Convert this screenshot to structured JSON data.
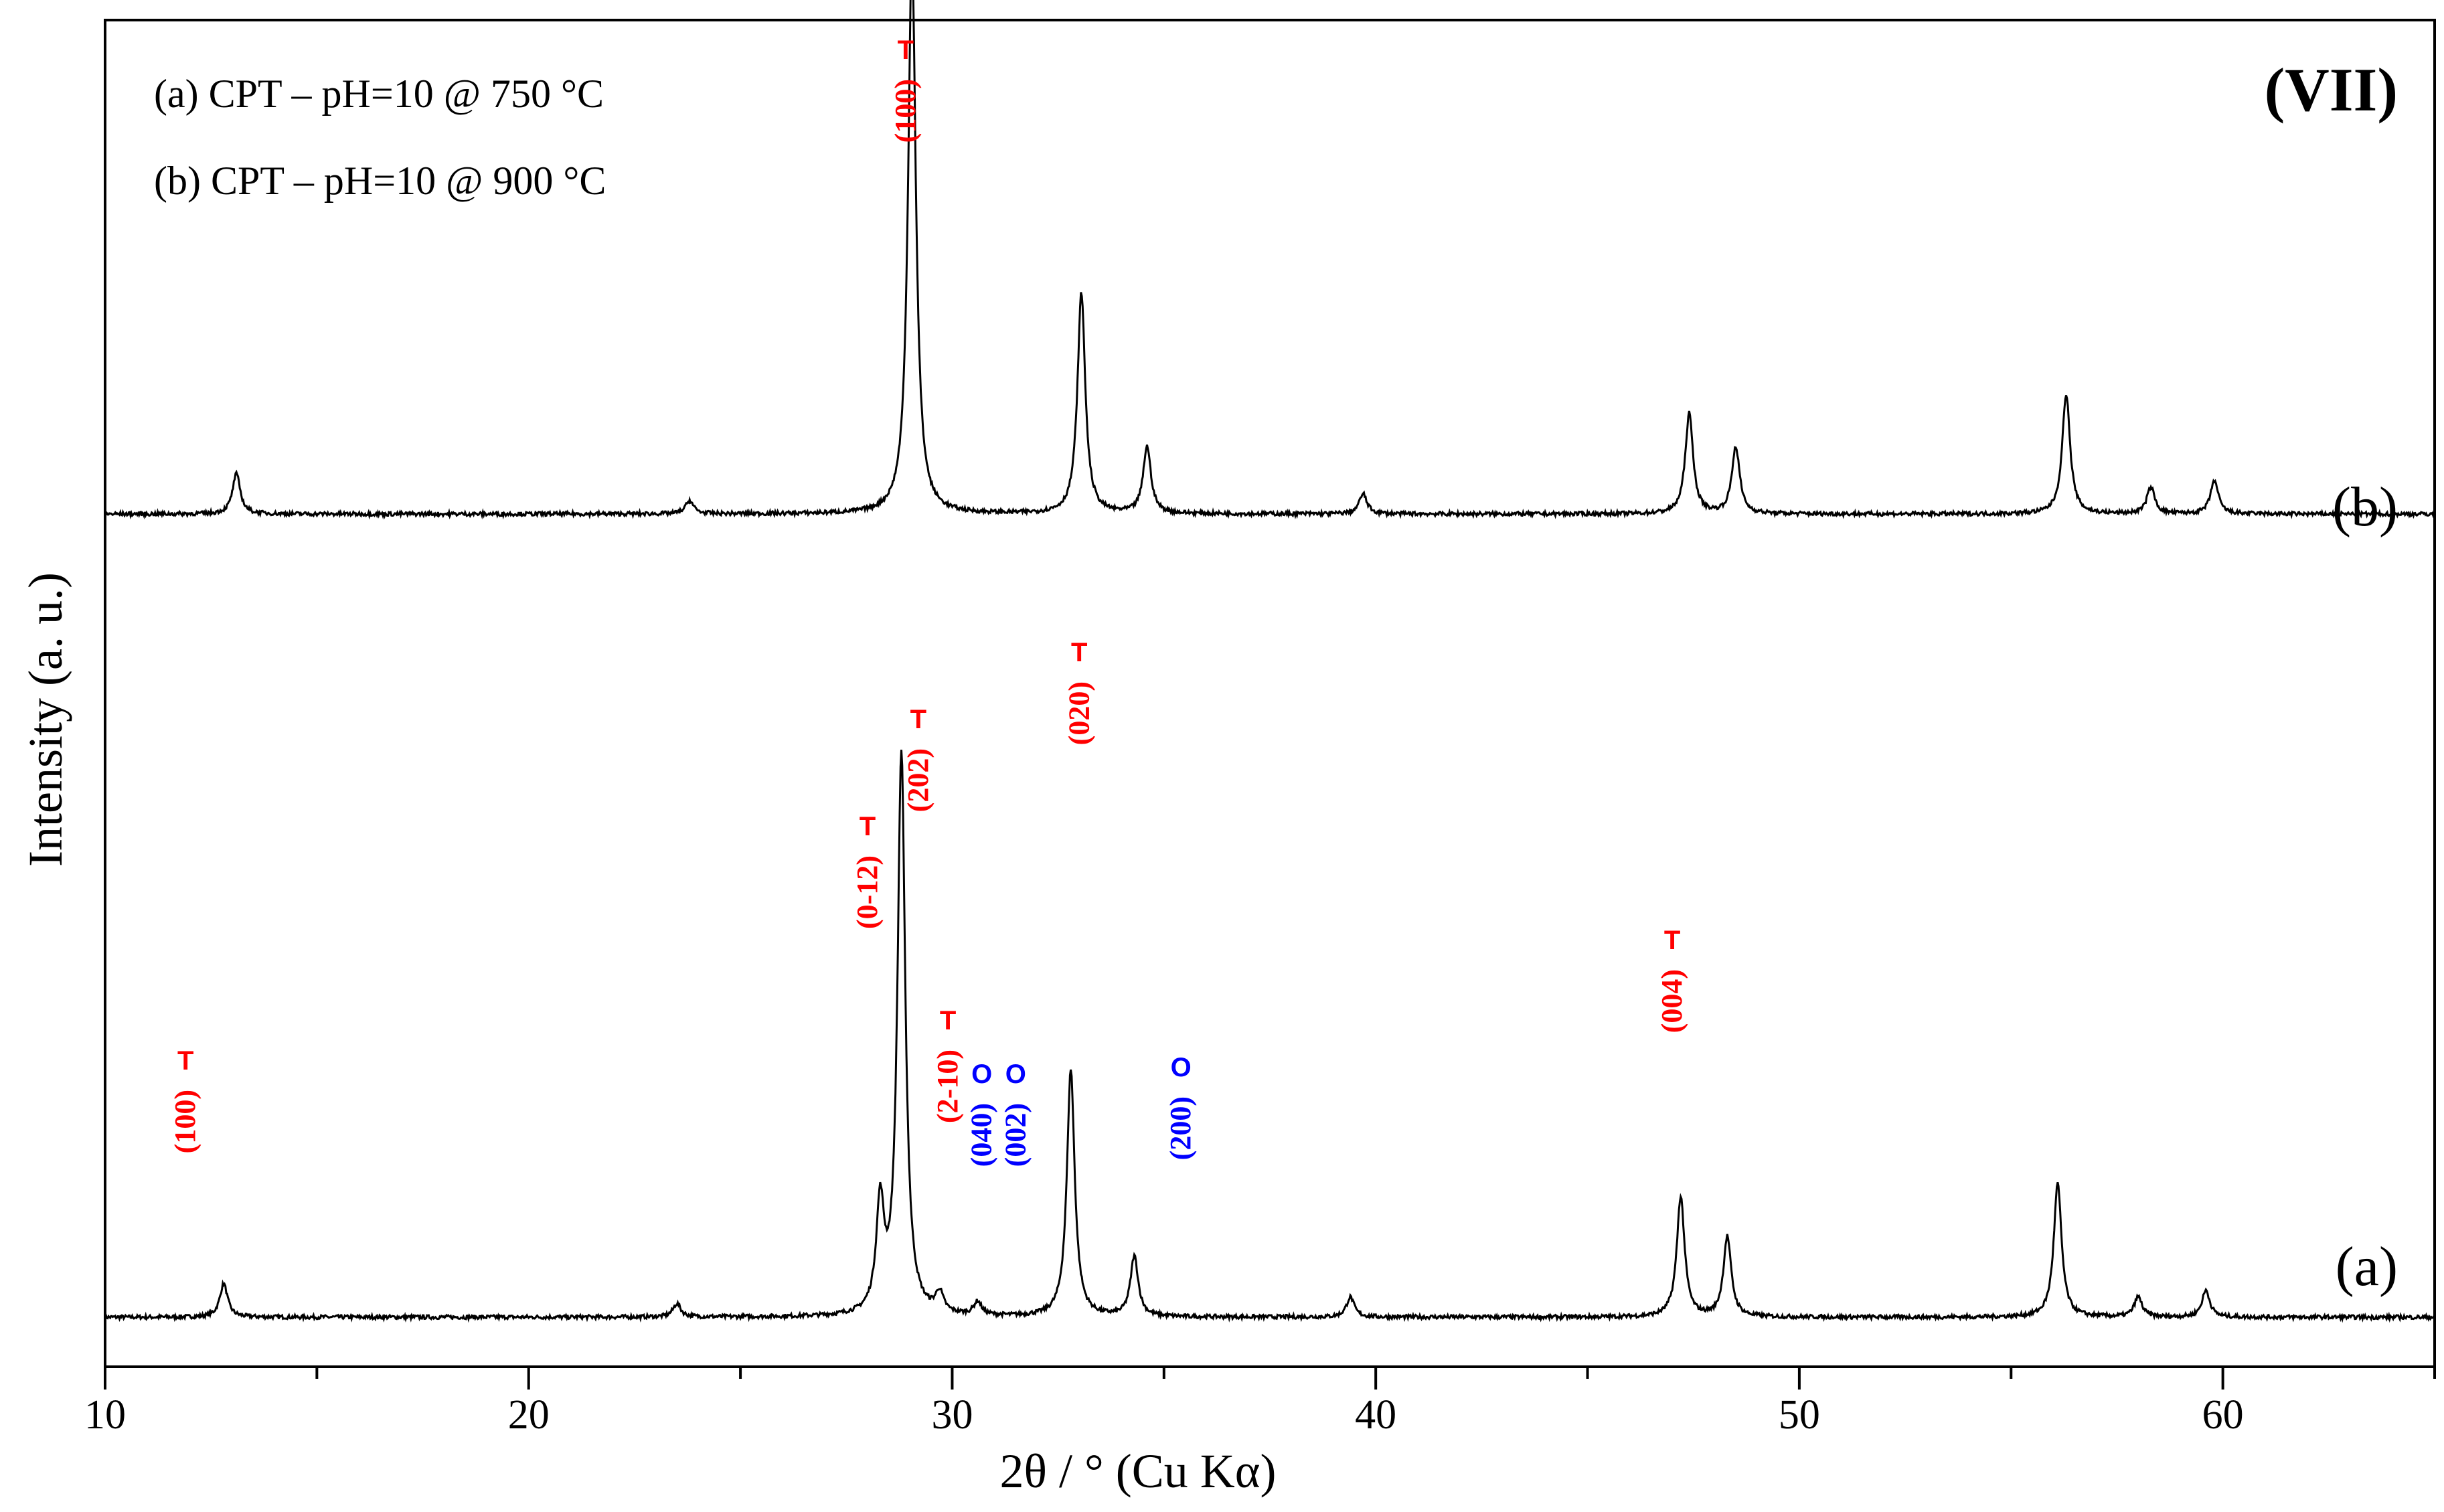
{
  "figure": {
    "panel_tag": "(VII)",
    "legend": [
      "(a) CPT – pH=10 @ 750 °C",
      "(b) CPT – pH=10 @ 900 °C"
    ]
  },
  "colors": {
    "tetragonal": "#ff0000",
    "orthorhombic": "#0000ff",
    "trace": "#000000"
  },
  "chart_data": {
    "type": "line",
    "title": "",
    "xlabel": "2θ / ° (Cu Kα)",
    "ylabel": "Intensity (a. u.)",
    "xlim": [
      10,
      65
    ],
    "y_ticks_shown": false,
    "grid": false,
    "legend_placement": "top-left",
    "x_ticks": [
      10,
      20,
      30,
      40,
      50,
      60
    ],
    "series": [
      {
        "name": "(a)",
        "baseline": 0,
        "peaks": [
          {
            "x": 12.8,
            "y": 0.05
          },
          {
            "x": 23.5,
            "y": 0.02
          },
          {
            "x": 28.3,
            "y": 0.16
          },
          {
            "x": 28.8,
            "y": 0.84
          },
          {
            "x": 29.7,
            "y": 0.03
          },
          {
            "x": 30.6,
            "y": 0.02
          },
          {
            "x": 32.8,
            "y": 0.37
          },
          {
            "x": 34.3,
            "y": 0.09
          },
          {
            "x": 39.4,
            "y": 0.03
          },
          {
            "x": 47.2,
            "y": 0.18
          },
          {
            "x": 48.3,
            "y": 0.12
          },
          {
            "x": 56.1,
            "y": 0.2
          },
          {
            "x": 58.0,
            "y": 0.03
          },
          {
            "x": 59.6,
            "y": 0.04
          }
        ]
      },
      {
        "name": "(b)",
        "baseline": 1.2,
        "peaks": [
          {
            "x": 13.1,
            "y": 0.06
          },
          {
            "x": 23.8,
            "y": 0.02
          },
          {
            "x": 29.05,
            "y": 0.84
          },
          {
            "x": 33.05,
            "y": 0.33
          },
          {
            "x": 34.6,
            "y": 0.1
          },
          {
            "x": 39.7,
            "y": 0.03
          },
          {
            "x": 47.4,
            "y": 0.15
          },
          {
            "x": 48.5,
            "y": 0.1
          },
          {
            "x": 56.3,
            "y": 0.18
          },
          {
            "x": 58.3,
            "y": 0.04
          },
          {
            "x": 59.8,
            "y": 0.05
          }
        ]
      }
    ],
    "annotations": [
      {
        "phase": "T",
        "hkl": "(100)",
        "x": 11.9,
        "y": 0.37
      },
      {
        "phase": "T",
        "hkl": "(0-12)",
        "x": 28.0,
        "y": 0.72
      },
      {
        "phase": "T",
        "hkl": "(100)",
        "x": 28.9,
        "y": 1.88
      },
      {
        "phase": "T",
        "hkl": "(202)",
        "x": 29.2,
        "y": 0.88
      },
      {
        "phase": "T",
        "hkl": "(2-10)",
        "x": 29.9,
        "y": 0.43
      },
      {
        "phase": "O",
        "hkl": "(040)",
        "x": 30.7,
        "y": 0.35
      },
      {
        "phase": "O",
        "hkl": "(002)",
        "x": 31.5,
        "y": 0.35
      },
      {
        "phase": "T",
        "hkl": "(020)",
        "x": 33.0,
        "y": 0.98
      },
      {
        "phase": "O",
        "hkl": "(200)",
        "x": 35.4,
        "y": 0.36
      },
      {
        "phase": "T",
        "hkl": "(004)",
        "x": 47.0,
        "y": 0.55
      }
    ]
  }
}
